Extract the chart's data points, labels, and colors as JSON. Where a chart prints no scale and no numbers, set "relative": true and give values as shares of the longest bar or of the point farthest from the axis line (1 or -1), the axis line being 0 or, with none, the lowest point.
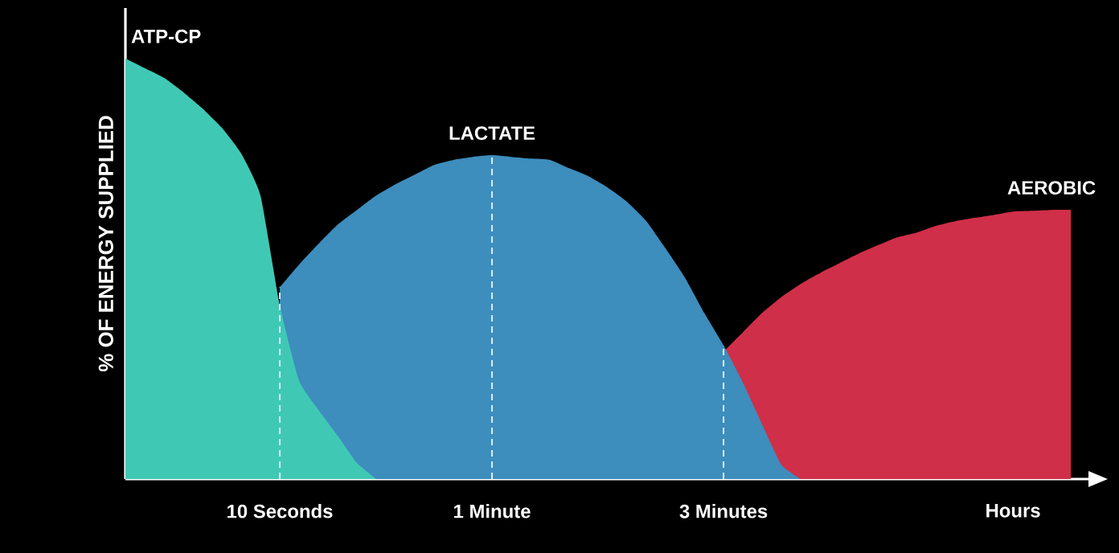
{
  "chart_data": {
    "type": "area",
    "relative": true,
    "ylabel": "% OF ENERGY SUPPLIED",
    "categories": [
      null,
      null,
      null,
      null,
      null,
      null,
      null,
      null,
      "10 Seconds",
      null,
      null,
      null,
      null,
      null,
      null,
      null,
      null,
      null,
      null,
      "1 Minute",
      null,
      null,
      null,
      null,
      null,
      null,
      null,
      null,
      null,
      null,
      null,
      "3 Minutes",
      null,
      null,
      null,
      null,
      null,
      null,
      null,
      null,
      null,
      null,
      null,
      null,
      null,
      null,
      "Hours",
      null,
      null,
      null
    ],
    "series": [
      {
        "name": "AEROBIC",
        "color": "#cf2f48",
        "values": [
          null,
          null,
          null,
          null,
          null,
          null,
          null,
          null,
          null,
          null,
          null,
          null,
          null,
          null,
          null,
          null,
          null,
          null,
          null,
          null,
          null,
          null,
          null,
          null,
          null,
          null,
          null,
          null,
          null,
          null,
          null,
          0.303,
          0.349,
          0.395,
          0.433,
          0.464,
          0.49,
          0.513,
          0.536,
          0.556,
          0.575,
          0.586,
          0.602,
          0.613,
          0.621,
          0.628,
          0.636,
          0.638,
          0.64,
          0.64
        ]
      },
      {
        "name": "LACTATE",
        "color": "#3d8dbd",
        "values": [
          null,
          null,
          null,
          null,
          null,
          null,
          null,
          null,
          0.456,
          0.51,
          0.559,
          0.605,
          0.64,
          0.674,
          0.701,
          0.724,
          0.747,
          0.759,
          0.766,
          0.77,
          0.766,
          0.762,
          0.759,
          0.739,
          0.72,
          0.693,
          0.659,
          0.613,
          0.548,
          0.479,
          0.395,
          0.318,
          0.23,
          0.13,
          0.034,
          0,
          null,
          null,
          null,
          null,
          null,
          null,
          null,
          null,
          null,
          null,
          null,
          null,
          null,
          null
        ]
      },
      {
        "name": "ATP-CP",
        "color": "#3fc9b4",
        "values": [
          1.0,
          0.977,
          0.954,
          0.92,
          0.881,
          0.835,
          0.774,
          0.674,
          0.414,
          0.234,
          0.165,
          0.103,
          0.038,
          0,
          null,
          null,
          null,
          null,
          null,
          null,
          null,
          null,
          null,
          null,
          null,
          null,
          null,
          null,
          null,
          null,
          null,
          null,
          null,
          null,
          null,
          null,
          null,
          null,
          null,
          null,
          null,
          null,
          null,
          null,
          null,
          null,
          null,
          null,
          null,
          null
        ]
      }
    ],
    "ref_lines": [
      {
        "axis": "x",
        "value": "10 Seconds",
        "color": "#d8f0f8",
        "line_style": "dashed"
      },
      {
        "axis": "x",
        "value": "1 Minute",
        "color": "#d8f0f8",
        "line_style": "dashed"
      },
      {
        "axis": "x",
        "value": "3 Minutes",
        "color": "#d8f0f8",
        "line_style": "dashed"
      }
    ]
  }
}
